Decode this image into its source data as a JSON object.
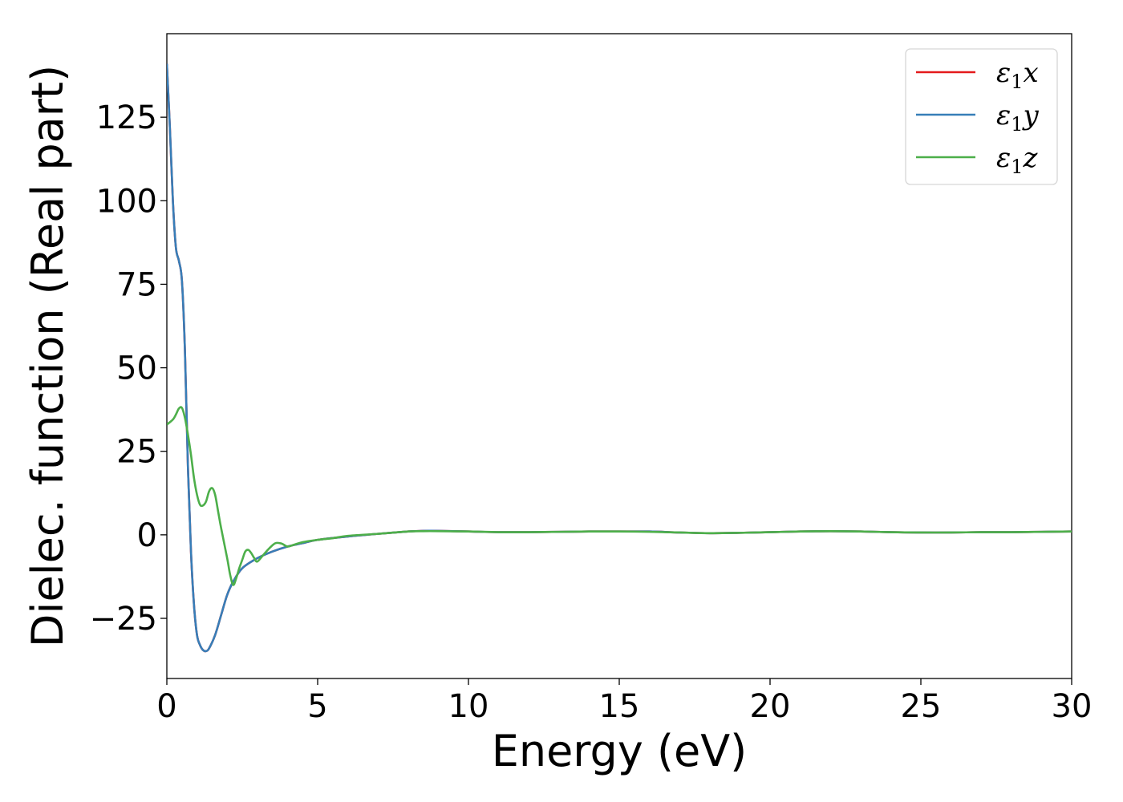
{
  "chart_data": {
    "type": "line",
    "title": "",
    "xlabel": "Energy (eV)",
    "ylabel": "Dielec. function (Real part)",
    "xlim": [
      0,
      30
    ],
    "ylim": [
      -43,
      150
    ],
    "xticks": [
      0,
      5,
      10,
      15,
      20,
      25,
      30
    ],
    "xtick_labels": [
      "0",
      "5",
      "10",
      "15",
      "20",
      "25",
      "30"
    ],
    "yticks": [
      -25,
      0,
      25,
      50,
      75,
      100,
      125
    ],
    "ytick_labels": [
      "−25",
      "0",
      "25",
      "50",
      "75",
      "100",
      "125"
    ],
    "grid": false,
    "legend_position": "top-right",
    "series": [
      {
        "name": "ε1x",
        "color": "#e41a1c",
        "x": [
          0,
          0.1,
          0.2,
          0.3,
          0.4,
          0.5,
          0.6,
          0.7,
          0.8,
          0.9,
          1.0,
          1.1,
          1.2,
          1.3,
          1.4,
          1.6,
          1.8,
          2.0,
          2.2,
          2.5,
          3.0,
          3.5,
          4.0,
          4.5,
          5.0,
          6.0,
          7.0,
          8.0,
          8.5,
          9.0,
          10.0,
          11.0,
          12.0,
          13.0,
          14.0,
          15.0,
          16.0,
          17.0,
          18.0,
          19.0,
          20.0,
          21.0,
          22.0,
          23.0,
          24.0,
          25.0,
          26.0,
          27.0,
          28.0,
          29.0,
          30.0
        ],
        "y": [
          141,
          122,
          100,
          86,
          82,
          76,
          55,
          20,
          -5,
          -21,
          -30,
          -33,
          -34.5,
          -34.8,
          -34,
          -30,
          -24,
          -18,
          -14,
          -10,
          -7,
          -5,
          -3.5,
          -2.5,
          -1.5,
          -0.5,
          0.3,
          1.0,
          1.2,
          1.2,
          1.0,
          0.8,
          0.8,
          0.9,
          1.0,
          1.0,
          1.0,
          0.7,
          0.5,
          0.6,
          0.8,
          1.0,
          1.1,
          1.0,
          0.8,
          0.7,
          0.7,
          0.8,
          0.8,
          0.9,
          1.0
        ]
      },
      {
        "name": "ε1y",
        "color": "#377eb8",
        "x": [
          0,
          0.1,
          0.2,
          0.3,
          0.4,
          0.5,
          0.6,
          0.7,
          0.8,
          0.9,
          1.0,
          1.1,
          1.2,
          1.3,
          1.4,
          1.6,
          1.8,
          2.0,
          2.2,
          2.5,
          3.0,
          3.5,
          4.0,
          4.5,
          5.0,
          6.0,
          7.0,
          8.0,
          8.5,
          9.0,
          10.0,
          11.0,
          12.0,
          13.0,
          14.0,
          15.0,
          16.0,
          17.0,
          18.0,
          19.0,
          20.0,
          21.0,
          22.0,
          23.0,
          24.0,
          25.0,
          26.0,
          27.0,
          28.0,
          29.0,
          30.0
        ],
        "y": [
          141,
          122,
          100,
          86,
          82,
          76,
          55,
          20,
          -5,
          -21,
          -30,
          -33,
          -34.5,
          -34.8,
          -34,
          -30,
          -24,
          -18,
          -14,
          -10,
          -7,
          -5,
          -3.5,
          -2.5,
          -1.5,
          -0.5,
          0.3,
          1.0,
          1.2,
          1.2,
          1.0,
          0.8,
          0.8,
          0.9,
          1.0,
          1.0,
          1.0,
          0.7,
          0.5,
          0.6,
          0.8,
          1.0,
          1.1,
          1.0,
          0.8,
          0.7,
          0.7,
          0.8,
          0.8,
          0.9,
          1.0
        ]
      },
      {
        "name": "ε1z",
        "color": "#4daf4a",
        "x": [
          0,
          0.2,
          0.3,
          0.4,
          0.5,
          0.6,
          0.7,
          0.8,
          0.9,
          1.0,
          1.1,
          1.2,
          1.3,
          1.4,
          1.5,
          1.6,
          1.7,
          1.8,
          2.0,
          2.1,
          2.2,
          2.3,
          2.4,
          2.5,
          2.6,
          2.7,
          2.8,
          2.9,
          3.0,
          3.2,
          3.4,
          3.6,
          3.8,
          4.0,
          4.2,
          4.5,
          5.0,
          5.5,
          6.0,
          7.0,
          8.0,
          8.5,
          9.0,
          10.0,
          11.0,
          12.0,
          13.0,
          14.0,
          15.0,
          16.0,
          17.0,
          18.0,
          19.0,
          20.0,
          21.0,
          22.0,
          23.0,
          24.0,
          25.0,
          26.0,
          27.0,
          28.0,
          29.0,
          30.0
        ],
        "y": [
          33,
          34.5,
          36,
          37.8,
          38,
          35,
          30,
          24,
          17,
          12,
          9,
          8.8,
          10,
          13,
          14,
          12,
          7,
          2,
          -7,
          -12,
          -15,
          -13,
          -10,
          -7.5,
          -5,
          -4.5,
          -5.5,
          -7,
          -8,
          -6,
          -4,
          -2.5,
          -2.6,
          -3.5,
          -3,
          -2.2,
          -1.5,
          -1,
          -0.3,
          0.3,
          1.0,
          1.1,
          1.1,
          1.0,
          0.8,
          0.8,
          0.9,
          1.0,
          1.0,
          0.9,
          0.7,
          0.5,
          0.6,
          0.8,
          1.0,
          1.1,
          1.0,
          0.8,
          0.7,
          0.7,
          0.8,
          0.8,
          0.9,
          1.0
        ]
      }
    ]
  }
}
